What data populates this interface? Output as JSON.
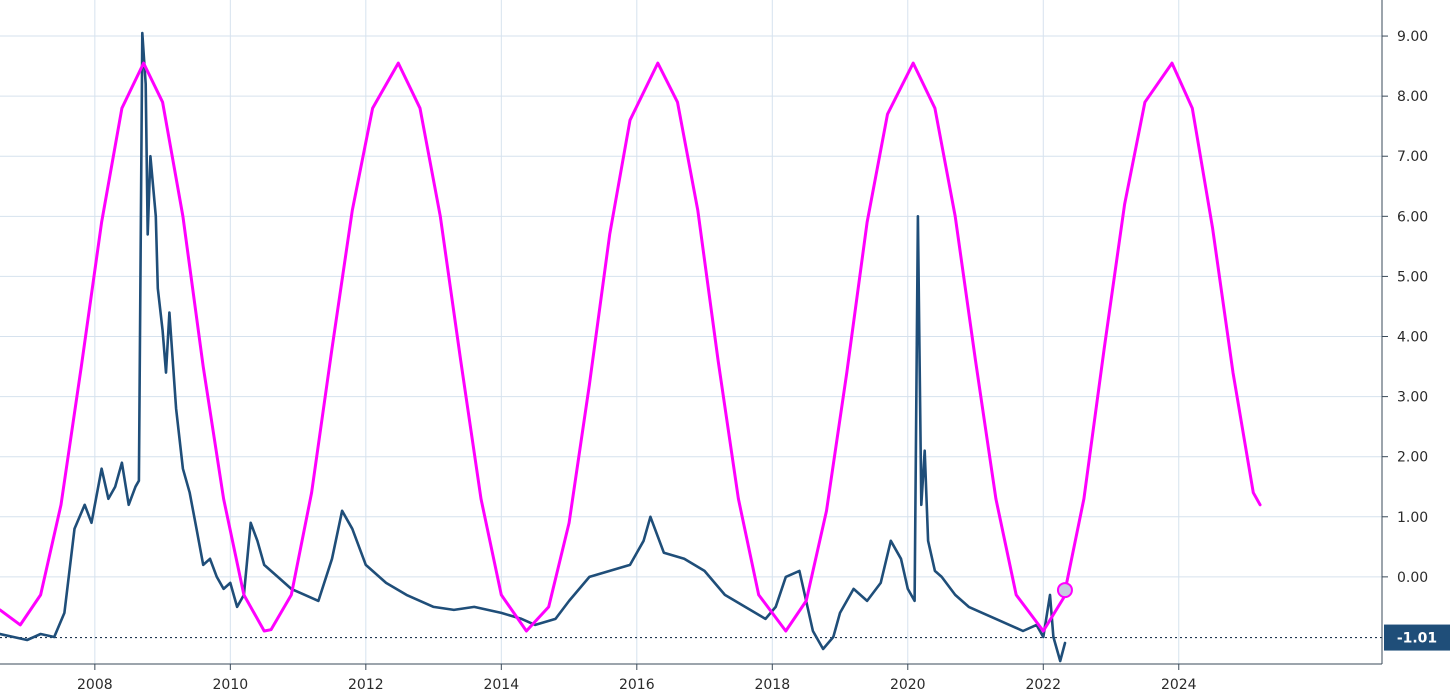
{
  "chart_data": {
    "type": "line",
    "title": "",
    "xlabel": "",
    "ylabel": "",
    "xlim": [
      2006.6,
      2027.0
    ],
    "ylim": [
      -1.45,
      9.6
    ],
    "grid": true,
    "x_ticks": [
      2008,
      2010,
      2012,
      2014,
      2016,
      2018,
      2020,
      2022,
      2024
    ],
    "x_tick_labels": [
      "2008",
      "2010",
      "2012",
      "2014",
      "2016",
      "2018",
      "2020",
      "2022",
      "2024"
    ],
    "y_ticks": [
      0,
      1,
      2,
      3,
      4,
      5,
      6,
      7,
      8,
      9
    ],
    "y_tick_labels": [
      "0.00",
      "1.00",
      "2.00",
      "3.00",
      "4.00",
      "5.00",
      "6.00",
      "7.00",
      "8.00",
      "9.00"
    ],
    "reference_line": {
      "value": -1.01,
      "label": "-1.01",
      "style": "dotted"
    },
    "series": [
      {
        "color": "#1f4e79",
        "style": "solid",
        "x": [
          2006.6,
          2006.8,
          2007.0,
          2007.2,
          2007.4,
          2007.55,
          2007.7,
          2007.85,
          2007.95,
          2008.1,
          2008.2,
          2008.3,
          2008.4,
          2008.5,
          2008.6,
          2008.65,
          2008.7,
          2008.75,
          2008.78,
          2008.82,
          2008.9,
          2008.93,
          2009.0,
          2009.05,
          2009.1,
          2009.2,
          2009.3,
          2009.4,
          2009.5,
          2009.6,
          2009.7,
          2009.8,
          2009.9,
          2010.0,
          2010.1,
          2010.2,
          2010.3,
          2010.4,
          2010.5,
          2010.7,
          2010.9,
          2011.1,
          2011.3,
          2011.5,
          2011.65,
          2011.8,
          2012.0,
          2012.3,
          2012.6,
          2013.0,
          2013.3,
          2013.6,
          2014.0,
          2014.3,
          2014.5,
          2014.8,
          2015.0,
          2015.3,
          2015.6,
          2015.9,
          2016.1,
          2016.2,
          2016.4,
          2016.7,
          2017.0,
          2017.3,
          2017.6,
          2017.9,
          2018.05,
          2018.2,
          2018.4,
          2018.6,
          2018.75,
          2018.9,
          2019.0,
          2019.2,
          2019.4,
          2019.6,
          2019.75,
          2019.9,
          2020.0,
          2020.1,
          2020.15,
          2020.2,
          2020.25,
          2020.3,
          2020.4,
          2020.5,
          2020.7,
          2020.9,
          2021.1,
          2021.3,
          2021.5,
          2021.7,
          2021.9,
          2022.0,
          2022.1,
          2022.15,
          2022.2,
          2022.25,
          2022.32
        ],
        "values": [
          -0.95,
          -1.0,
          -1.05,
          -0.95,
          -1.0,
          -0.6,
          0.8,
          1.2,
          0.9,
          1.8,
          1.3,
          1.5,
          1.9,
          1.2,
          1.5,
          1.6,
          9.05,
          8.2,
          5.7,
          7.0,
          6.0,
          4.8,
          4.1,
          3.4,
          4.4,
          2.8,
          1.8,
          1.4,
          0.8,
          0.2,
          0.3,
          0.0,
          -0.2,
          -0.1,
          -0.5,
          -0.3,
          0.9,
          0.6,
          0.2,
          0.0,
          -0.2,
          -0.3,
          -0.4,
          0.3,
          1.1,
          0.8,
          0.2,
          -0.1,
          -0.3,
          -0.5,
          -0.55,
          -0.5,
          -0.6,
          -0.7,
          -0.8,
          -0.7,
          -0.4,
          0.0,
          0.1,
          0.2,
          0.6,
          1.0,
          0.4,
          0.3,
          0.1,
          -0.3,
          -0.5,
          -0.7,
          -0.5,
          0.0,
          0.1,
          -0.9,
          -1.2,
          -1.0,
          -0.6,
          -0.2,
          -0.4,
          -0.1,
          0.6,
          0.3,
          -0.2,
          -0.4,
          6.0,
          1.2,
          2.1,
          0.6,
          0.1,
          0.0,
          -0.3,
          -0.5,
          -0.6,
          -0.7,
          -0.8,
          -0.9,
          -0.8,
          -1.0,
          -0.3,
          -1.0,
          -1.2,
          -1.4,
          -1.1
        ]
      },
      {
        "color": "#ff00ff",
        "style": "solid",
        "x": [
          2006.6,
          2006.9,
          2007.2,
          2007.5,
          2007.8,
          2008.1,
          2008.4,
          2008.72,
          2009.0,
          2009.3,
          2009.6,
          2009.9,
          2010.2,
          2010.5,
          2010.6,
          2010.9,
          2011.2,
          2011.5,
          2011.8,
          2012.1,
          2012.48,
          2012.8,
          2013.1,
          2013.4,
          2013.7,
          2014.0,
          2014.37,
          2014.7,
          2015.0,
          2015.3,
          2015.6,
          2015.9,
          2016.31,
          2016.6,
          2016.9,
          2017.2,
          2017.5,
          2017.8,
          2018.2,
          2018.5,
          2018.8,
          2019.1,
          2019.4,
          2019.7,
          2020.08,
          2020.4,
          2020.7,
          2021.0,
          2021.3,
          2021.6,
          2022.0,
          2022.3,
          2022.6,
          2022.9,
          2023.2,
          2023.5,
          2023.9,
          2024.2,
          2024.5,
          2024.8,
          2025.1,
          2025.2
        ],
        "values": [
          -0.55,
          -0.8,
          -0.3,
          1.2,
          3.5,
          5.9,
          7.8,
          8.55,
          7.9,
          6.0,
          3.5,
          1.3,
          -0.3,
          -0.9,
          -0.88,
          -0.3,
          1.4,
          3.8,
          6.1,
          7.8,
          8.55,
          7.8,
          6.0,
          3.6,
          1.3,
          -0.3,
          -0.9,
          -0.5,
          0.9,
          3.2,
          5.7,
          7.6,
          8.55,
          7.9,
          6.1,
          3.6,
          1.3,
          -0.3,
          -0.9,
          -0.4,
          1.1,
          3.4,
          5.9,
          7.7,
          8.55,
          7.8,
          6.0,
          3.6,
          1.3,
          -0.3,
          -0.9,
          -0.35,
          1.3,
          3.8,
          6.2,
          7.9,
          8.55,
          7.8,
          5.8,
          3.4,
          1.4,
          1.2
        ]
      }
    ],
    "marker": {
      "x": 2022.32,
      "y": -0.22,
      "color": "#c5cce0"
    }
  }
}
